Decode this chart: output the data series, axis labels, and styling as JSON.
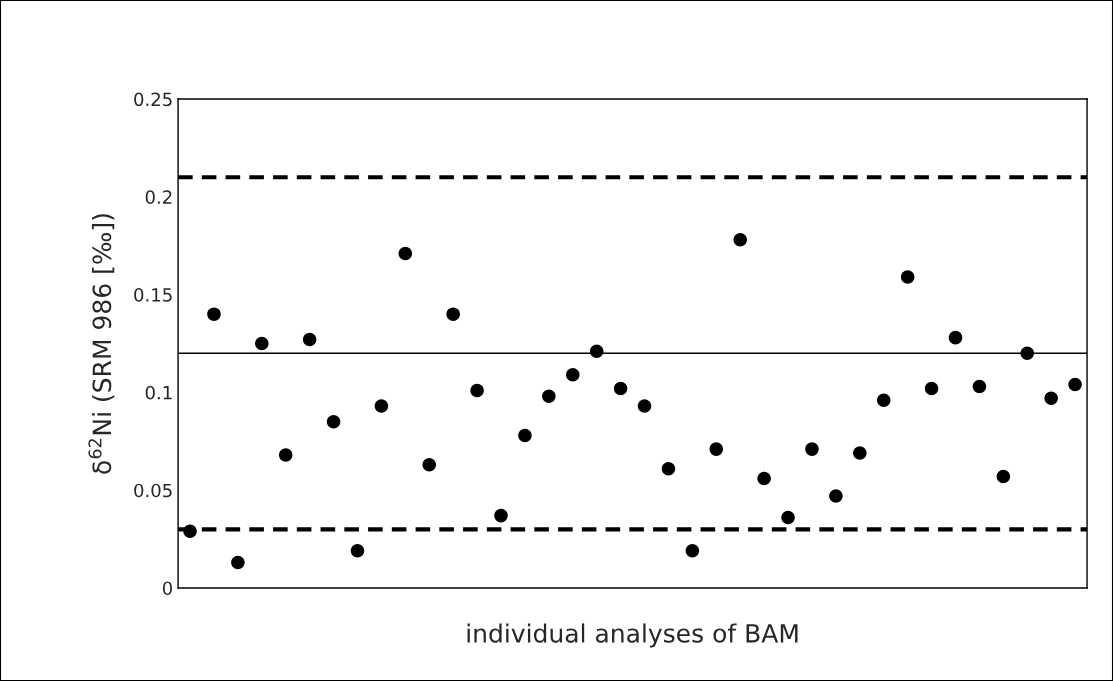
{
  "chart_data": {
    "type": "scatter",
    "xlabel": "individual analyses of BAM",
    "ylabel": "δ$^{62}$Ni (SRM 986 [‰])",
    "categories": [
      null,
      null,
      null,
      null,
      null,
      null,
      null,
      null,
      null,
      null,
      null,
      null,
      null,
      null,
      null,
      null,
      null,
      null,
      null,
      null,
      null,
      null,
      null,
      null,
      null,
      null,
      null,
      null,
      null,
      null,
      null,
      null,
      null,
      null,
      null,
      null,
      null,
      null
    ],
    "series": [
      {
        "color": "#000000",
        "values": [
          0.029,
          0.14,
          0.013,
          0.125,
          0.068,
          0.127,
          0.085,
          0.019,
          0.093,
          0.171,
          0.063,
          0.14,
          0.101,
          0.037,
          0.078,
          0.098,
          0.109,
          0.121,
          0.102,
          0.093,
          0.061,
          0.019,
          0.071,
          0.178,
          0.056,
          0.036,
          0.071,
          0.047,
          0.069,
          0.096,
          0.159,
          0.102,
          0.128,
          0.103,
          0.057,
          0.12,
          0.097,
          0.104
        ]
      }
    ],
    "ylim": [
      0,
      0.25
    ],
    "yticks": [
      0,
      0.05,
      0.1,
      0.15,
      0.2,
      0.25
    ],
    "ref_lines": [
      {
        "axis": "y",
        "value": 0.21,
        "color": "#000000",
        "line_style": "dashed"
      },
      {
        "axis": "y",
        "value": 0.12,
        "color": "#000000",
        "line_style": "solid"
      },
      {
        "axis": "y",
        "value": 0.03,
        "color": "#000000",
        "line_style": "dashed"
      }
    ],
    "marker": "circle",
    "grid": false,
    "legend": false
  }
}
